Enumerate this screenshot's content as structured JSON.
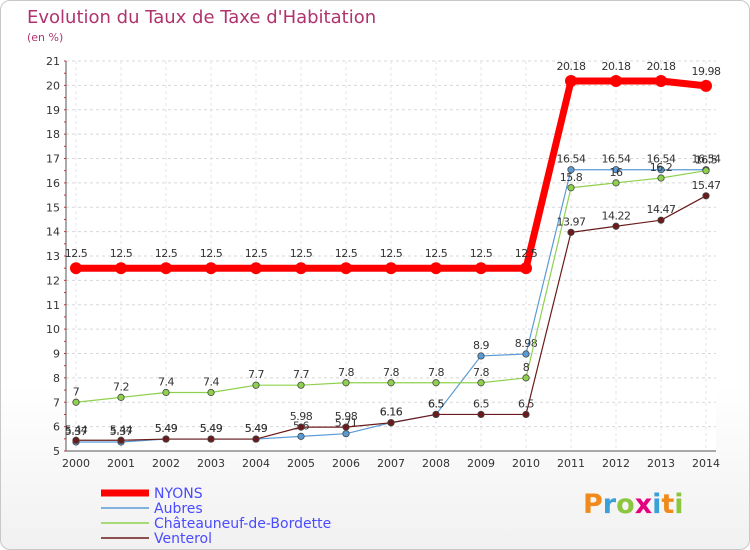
{
  "chart_data": {
    "type": "line",
    "title": "Evolution du Taux de Taxe d'Habitation",
    "subtitle": "(en %)",
    "x": [
      "2000",
      "2001",
      "2002",
      "2003",
      "2004",
      "2005",
      "2006",
      "2007",
      "2008",
      "2009",
      "2010",
      "2011",
      "2012",
      "2013",
      "2014"
    ],
    "ylim": [
      5,
      21
    ],
    "y_ticks": [
      5,
      6,
      7,
      8,
      9,
      10,
      11,
      12,
      13,
      14,
      15,
      16,
      17,
      18,
      19,
      20,
      21
    ],
    "grid": "dashed horizontal",
    "legend_position": "bottom-left",
    "series": [
      {
        "name": "NYONS",
        "color": "#ff0000",
        "values": [
          12.5,
          12.5,
          12.5,
          12.5,
          12.5,
          12.5,
          12.5,
          12.5,
          12.5,
          12.5,
          12.5,
          20.18,
          20.18,
          20.18,
          19.98
        ],
        "labels": [
          "12.5",
          "12.5",
          "12.5",
          "12.5",
          "12.5",
          "12.5",
          "12.5",
          "12.5",
          "12.5",
          "12.5",
          "12.5",
          "20.18",
          "20.18",
          "20.18",
          "19.98"
        ]
      },
      {
        "name": "Aubres",
        "color": "#5b9bd5",
        "values": [
          5.37,
          5.37,
          5.49,
          5.49,
          5.49,
          5.6,
          5.71,
          6.16,
          6.5,
          8.9,
          8.98,
          16.54,
          16.54,
          16.54,
          16.54
        ],
        "labels": [
          "5.37",
          "5.37",
          "5.49",
          "5.49",
          "5.49",
          "5.6",
          "5.71",
          "6.16",
          "6.5",
          "8.9",
          "8.98",
          "16.54",
          "16.54",
          "16.54",
          "16.54"
        ]
      },
      {
        "name": "Châteauneuf-de-Bordette",
        "color": "#8fd14f",
        "values": [
          7,
          7.2,
          7.4,
          7.4,
          7.7,
          7.7,
          7.8,
          7.8,
          7.8,
          7.8,
          8,
          15.8,
          16,
          16.2,
          16.5
        ],
        "labels": [
          "7",
          "7.2",
          "7.4",
          "7.4",
          "7.7",
          "7.7",
          "7.8",
          "7.8",
          "7.8",
          "7.8",
          "8",
          "15.8",
          "16",
          "16.2",
          "16.5"
        ]
      },
      {
        "name": "Venterol",
        "color": "#6b1b1b",
        "values": [
          5.44,
          5.44,
          5.49,
          5.49,
          5.49,
          5.98,
          5.98,
          6.16,
          6.5,
          6.5,
          6.5,
          13.97,
          14.22,
          14.47,
          15.47
        ],
        "labels": [
          "5.44",
          "5.44",
          "5.49",
          "5.49",
          "5.49",
          "5.98",
          "5.98",
          "6.16",
          "6.5",
          "6.5",
          "6.5",
          "13.97",
          "14.22",
          "14.47",
          "15.47"
        ]
      }
    ]
  },
  "logo": {
    "text": "Proxiti",
    "letters": [
      "P",
      "r",
      "o",
      "x",
      "i",
      "t",
      "i"
    ],
    "colors": [
      "#f08a1c",
      "#3aa0d8",
      "#8cc63f",
      "#e5007e",
      "#3aa0d8",
      "#f08a1c",
      "#8cc63f"
    ]
  }
}
